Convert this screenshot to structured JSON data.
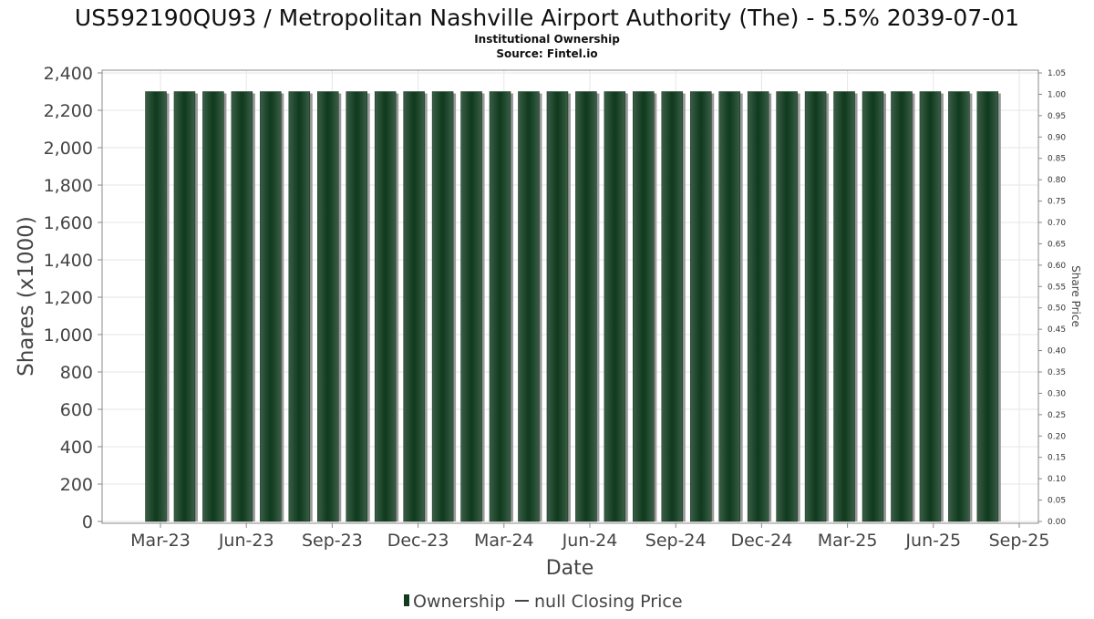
{
  "chart_data": {
    "type": "bar",
    "title": "US592190QU93 / Metropolitan Nashville Airport Authority (The) - 5.5% 2039-07-01",
    "subtitle_lines": [
      "Institutional Ownership",
      "Source: Fintel.io"
    ],
    "xlabel": "Date",
    "ylabel": "Shares (x1000)",
    "y2label": "Share Price",
    "ylim": [
      0,
      2400
    ],
    "yticks": [
      0,
      200,
      400,
      600,
      800,
      1000,
      1200,
      1400,
      1600,
      1800,
      2000,
      2200,
      2400
    ],
    "y2lim": [
      0,
      1.05
    ],
    "y2ticks": [
      "0.00",
      "0.05",
      "0.10",
      "0.15",
      "0.20",
      "0.25",
      "0.30",
      "0.35",
      "0.40",
      "0.45",
      "0.50",
      "0.55",
      "0.60",
      "0.65",
      "0.70",
      "0.75",
      "0.80",
      "0.85",
      "0.90",
      "0.95",
      "1.00",
      "1.05"
    ],
    "xtick_labels": [
      "Mar-23",
      "Jun-23",
      "Sep-23",
      "Dec-23",
      "Mar-24",
      "Jun-24",
      "Sep-24",
      "Dec-24",
      "Mar-25",
      "Jun-25",
      "Sep-25"
    ],
    "grid": true,
    "legend_position": "bottom",
    "legend": [
      {
        "label": "Ownership",
        "marker": "bar"
      },
      {
        "label": "null Closing Price",
        "marker": "line"
      }
    ],
    "series": [
      {
        "name": "Ownership",
        "values": [
          2300,
          2300,
          2300,
          2300,
          2300,
          2300,
          2300,
          2300,
          2300,
          2300,
          2300,
          2300,
          2300,
          2300,
          2300,
          2300,
          2300,
          2300,
          2300,
          2300,
          2300,
          2300,
          2300,
          2300,
          2300,
          2300,
          2300,
          2300,
          2300,
          2300
        ]
      }
    ],
    "colors": {
      "bar_light": "#3b5e47",
      "bar_dark": "#123c20",
      "bar_shadow": "#9a9a9a",
      "grid": "#e6e6e6",
      "axis": "#888888"
    }
  }
}
